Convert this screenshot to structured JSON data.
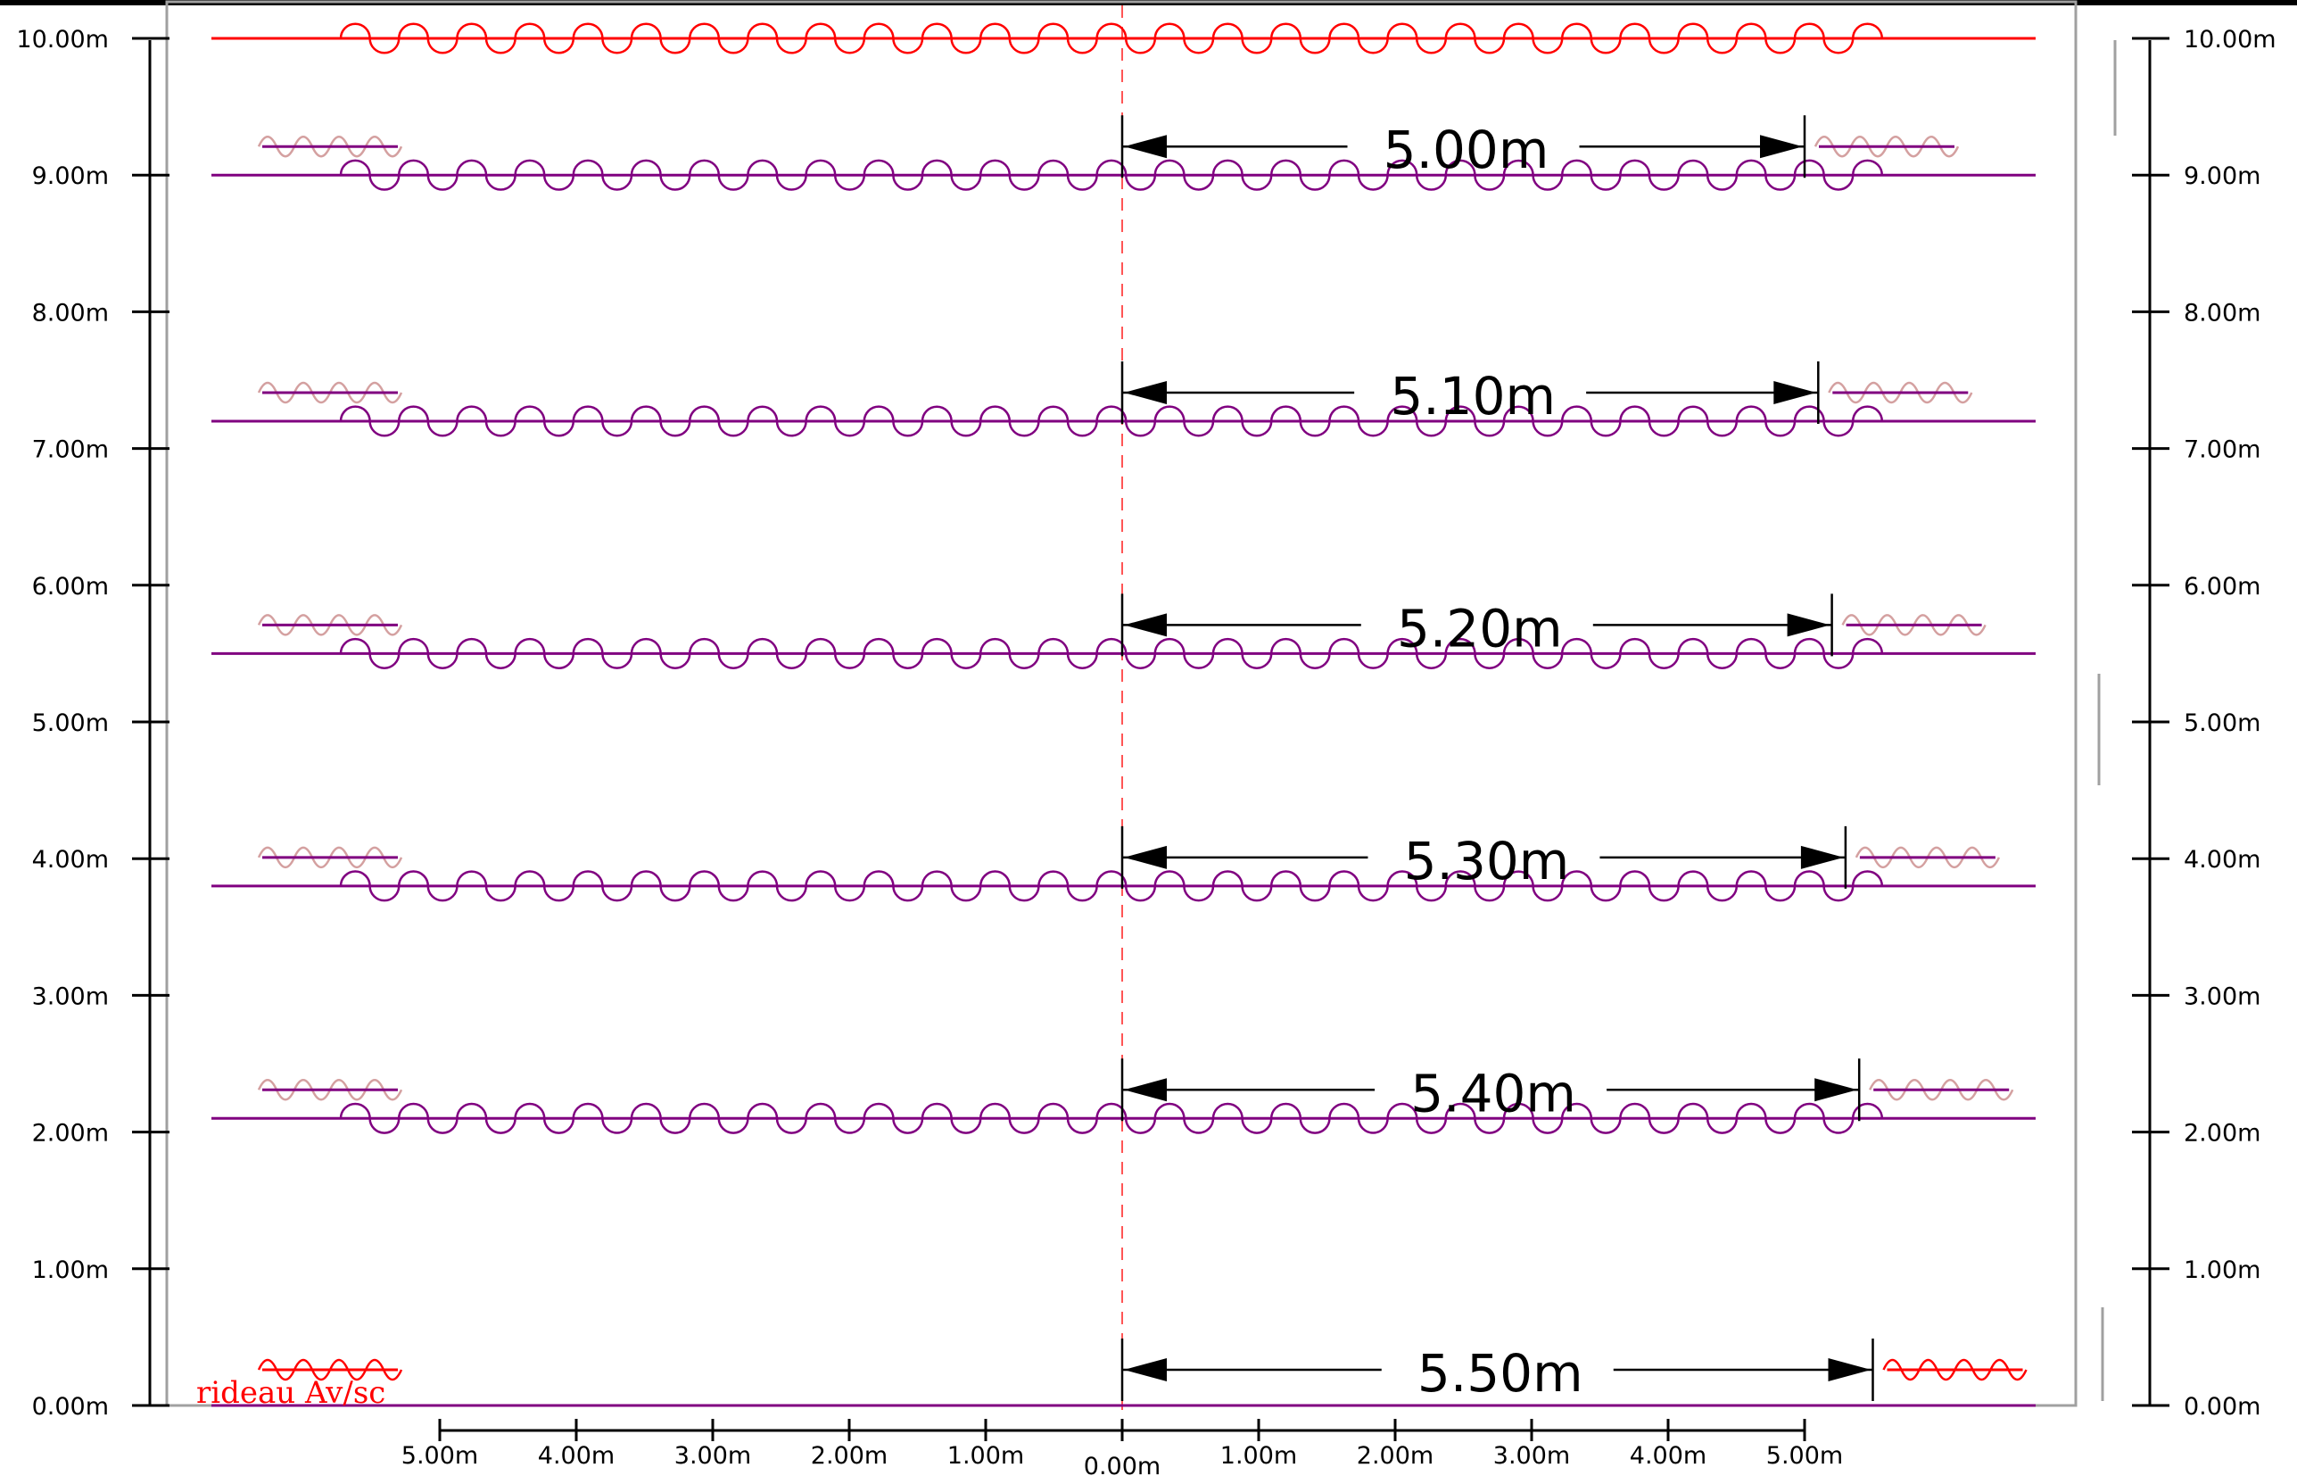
{
  "colors": {
    "red": "#ff0000",
    "purple": "#800080",
    "pink": "#d4a0a0",
    "axis": "#000000",
    "center_line": "#ff5555",
    "frame": "#a0a0a0"
  },
  "axes": {
    "left_ticks": [
      "0.00m",
      "1.00m",
      "2.00m",
      "3.00m",
      "4.00m",
      "5.00m",
      "6.00m",
      "7.00m",
      "8.00m",
      "9.00m",
      "10.00m"
    ],
    "right_ticks": [
      "0.00m",
      "1.00m",
      "2.00m",
      "3.00m",
      "4.00m",
      "5.00m",
      "6.00m",
      "7.00m",
      "8.00m",
      "9.00m",
      "10.00m"
    ],
    "bottom_ticks": [
      "5.00m",
      "4.00m",
      "3.00m",
      "2.00m",
      "1.00m",
      "0.00m",
      "1.00m",
      "2.00m",
      "3.00m",
      "4.00m",
      "5.00m"
    ]
  },
  "curtains": [
    {
      "name": "top-red-curtain",
      "depth_m": 10.0,
      "color": "red",
      "dimension_label": null,
      "fly_icon": null
    },
    {
      "name": "curtain-9",
      "depth_m": 9.0,
      "color": "purple",
      "dimension_label": "5.00m",
      "half_width_m": 5.0,
      "fly_icon": "pink"
    },
    {
      "name": "curtain-7-2",
      "depth_m": 7.2,
      "color": "purple",
      "dimension_label": "5.10m",
      "half_width_m": 5.1,
      "fly_icon": "pink"
    },
    {
      "name": "curtain-5-5",
      "depth_m": 5.5,
      "color": "purple",
      "dimension_label": "5.20m",
      "half_width_m": 5.2,
      "fly_icon": "pink"
    },
    {
      "name": "curtain-3-8",
      "depth_m": 3.8,
      "color": "purple",
      "dimension_label": "5.30m",
      "half_width_m": 5.3,
      "fly_icon": "pink"
    },
    {
      "name": "curtain-2-1",
      "depth_m": 2.1,
      "color": "purple",
      "dimension_label": "5.40m",
      "half_width_m": 5.4,
      "fly_icon": "pink"
    },
    {
      "name": "front-curtain",
      "depth_m": 0.0,
      "color": "red",
      "dimension_label": "5.50m",
      "half_width_m": 5.5,
      "fly_icon": "red"
    }
  ],
  "front_curtain_label": "rideau Av/sc"
}
